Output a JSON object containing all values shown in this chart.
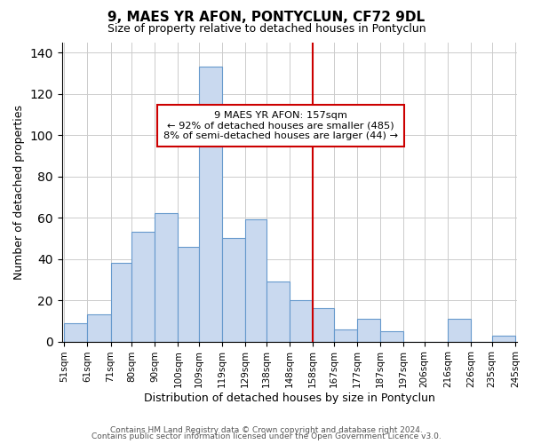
{
  "title": "9, MAES YR AFON, PONTYCLUN, CF72 9DL",
  "subtitle": "Size of property relative to detached houses in Pontyclun",
  "xlabel": "Distribution of detached houses by size in Pontyclun",
  "ylabel": "Number of detached properties",
  "bar_labels": [
    "51sqm",
    "61sqm",
    "71sqm",
    "80sqm",
    "90sqm",
    "100sqm",
    "109sqm",
    "119sqm",
    "129sqm",
    "138sqm",
    "148sqm",
    "158sqm",
    "167sqm",
    "177sqm",
    "187sqm",
    "197sqm",
    "206sqm",
    "216sqm",
    "226sqm",
    "235sqm",
    "245sqm"
  ],
  "bar_values": [
    9,
    13,
    38,
    53,
    62,
    46,
    133,
    50,
    59,
    29,
    20,
    16,
    6,
    11,
    5,
    0,
    0,
    11,
    0,
    3
  ],
  "bar_edges": [
    51,
    61,
    71,
    80,
    90,
    100,
    109,
    119,
    129,
    138,
    148,
    158,
    167,
    177,
    187,
    197,
    206,
    216,
    226,
    235,
    245
  ],
  "bar_color": "#c9d9ef",
  "bar_edge_color": "#6699cc",
  "vline_x": 158,
  "vline_color": "#cc0000",
  "ylim": [
    0,
    145
  ],
  "yticks": [
    0,
    20,
    40,
    60,
    80,
    100,
    120,
    140
  ],
  "annotation_title": "9 MAES YR AFON: 157sqm",
  "annotation_line1": "← 92% of detached houses are smaller (485)",
  "annotation_line2": "8% of semi-detached houses are larger (44) →",
  "annotation_box_color": "#ffffff",
  "annotation_box_edge": "#cc0000",
  "footer_line1": "Contains HM Land Registry data © Crown copyright and database right 2024.",
  "footer_line2": "Contains public sector information licensed under the Open Government Licence v3.0.",
  "background_color": "#ffffff",
  "grid_color": "#cccccc"
}
